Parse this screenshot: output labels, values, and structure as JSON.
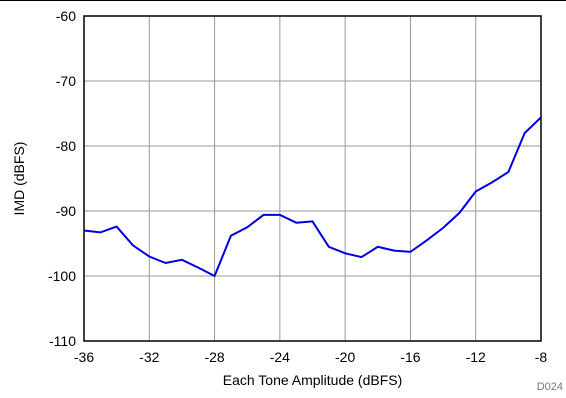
{
  "chart_data": {
    "type": "line",
    "title": "",
    "xlabel": "Each Tone Amplitude (dBFS)",
    "ylabel": "IMD (dBFS)",
    "xlim": [
      -36,
      -8
    ],
    "ylim": [
      -110,
      -60
    ],
    "x_ticks": [
      -36,
      -32,
      -28,
      -24,
      -20,
      -16,
      -12,
      -8
    ],
    "y_ticks": [
      -60,
      -70,
      -80,
      -90,
      -100,
      -110
    ],
    "grid": true,
    "line_color": "#0000dd",
    "series": [
      {
        "x": [
          -36,
          -35,
          -34,
          -33,
          -32,
          -31,
          -30,
          -29,
          -28,
          -27,
          -26,
          -25,
          -24,
          -23,
          -22,
          -21,
          -20,
          -19,
          -18,
          -17,
          -16,
          -15,
          -14,
          -13,
          -12,
          -11,
          -10,
          -9,
          -8
        ],
        "y": [
          -93,
          -93.3,
          -92.4,
          -95.3,
          -97,
          -98,
          -97.5,
          -98.7,
          -100,
          -93.8,
          -92.5,
          -90.6,
          -90.6,
          -91.8,
          -91.6,
          -95.5,
          -96.5,
          -97.1,
          -95.5,
          -96.1,
          -96.3,
          -94.5,
          -92.6,
          -90.3,
          -87,
          -85.6,
          -84,
          -78,
          -75.6
        ]
      }
    ],
    "figure_id": "D024"
  }
}
